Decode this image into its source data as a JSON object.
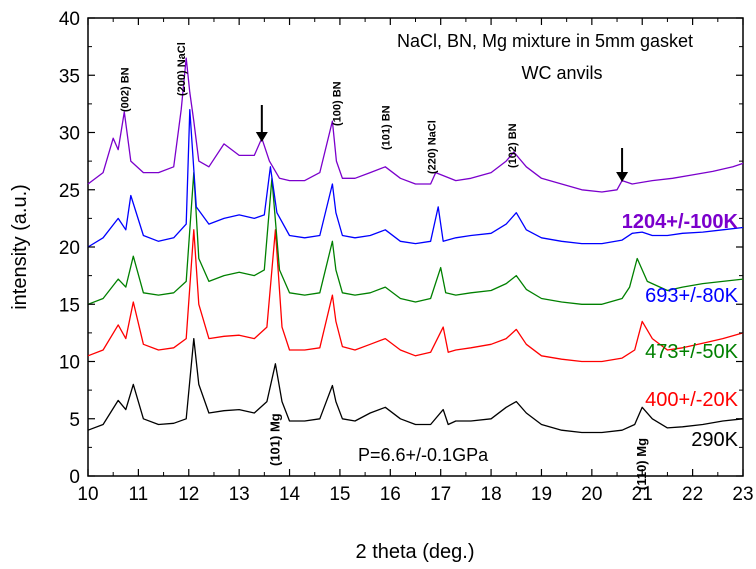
{
  "chart_data": {
    "type": "line",
    "title": [
      "NaCl, BN, Mg mixture in 5mm gasket",
      "WC anvils"
    ],
    "xlabel": "2 theta (deg.)",
    "ylabel": "intensity (a.u.)",
    "xlim": [
      10,
      23
    ],
    "ylim": [
      0,
      40
    ],
    "xticks": [
      "10",
      "11",
      "12",
      "13",
      "14",
      "15",
      "16",
      "17",
      "18",
      "19",
      "20",
      "21",
      "22",
      "23"
    ],
    "yticks": [
      "0",
      "5",
      "10",
      "15",
      "20",
      "25",
      "30",
      "35",
      "40"
    ],
    "grid": false,
    "annotation": "P=6.6+/-0.1GPa",
    "peak_labels": [
      {
        "text": "(002) BN",
        "x": 10.72
      },
      {
        "text": "(200) NaCl",
        "x": 11.85
      },
      {
        "text": "(100) BN",
        "x": 14.93
      },
      {
        "text": "(101) BN",
        "x": 15.9
      },
      {
        "text": "(220) NaCl",
        "x": 16.82
      },
      {
        "text": "(102) BN",
        "x": 18.42
      },
      {
        "text": "(101) Mg",
        "x": 13.72
      },
      {
        "text": "(110) Mg",
        "x": 21.0
      }
    ],
    "arrows": [
      13.45,
      20.6
    ],
    "series": [
      {
        "name": "290K",
        "color": "#000000",
        "x": [
          10.0,
          10.3,
          10.6,
          10.75,
          10.9,
          11.1,
          11.4,
          11.7,
          11.95,
          12.1,
          12.2,
          12.4,
          12.7,
          13.0,
          13.3,
          13.55,
          13.72,
          13.85,
          14.0,
          14.3,
          14.6,
          14.85,
          14.92,
          15.05,
          15.3,
          15.6,
          15.9,
          16.2,
          16.5,
          16.8,
          17.05,
          17.15,
          17.3,
          17.6,
          18.0,
          18.3,
          18.5,
          18.7,
          19.0,
          19.4,
          19.8,
          20.2,
          20.6,
          20.85,
          21.0,
          21.2,
          21.5,
          21.8,
          22.2,
          22.6,
          23.0
        ],
        "values": [
          4.0,
          4.5,
          6.6,
          5.8,
          8.0,
          5.0,
          4.5,
          4.6,
          5.0,
          12.0,
          8.0,
          5.5,
          5.7,
          5.8,
          5.5,
          6.5,
          9.8,
          6.5,
          4.8,
          4.8,
          5.0,
          7.9,
          6.5,
          5.0,
          4.8,
          5.5,
          6.0,
          5.0,
          4.5,
          4.5,
          5.8,
          4.5,
          4.8,
          4.8,
          5.0,
          6.0,
          6.5,
          5.5,
          4.5,
          4.0,
          3.8,
          3.8,
          4.0,
          4.5,
          6.0,
          5.0,
          4.2,
          4.3,
          4.5,
          4.8,
          5.0
        ]
      },
      {
        "name": "400+/-20K",
        "color": "#ff0000",
        "x": [
          10.0,
          10.3,
          10.6,
          10.75,
          10.9,
          11.1,
          11.4,
          11.7,
          11.95,
          12.1,
          12.2,
          12.4,
          12.7,
          13.0,
          13.3,
          13.55,
          13.72,
          13.85,
          14.0,
          14.3,
          14.6,
          14.85,
          14.92,
          15.05,
          15.3,
          15.6,
          15.9,
          16.2,
          16.5,
          16.8,
          17.05,
          17.15,
          17.3,
          17.6,
          18.0,
          18.3,
          18.5,
          18.7,
          19.0,
          19.4,
          19.8,
          20.2,
          20.6,
          20.85,
          21.0,
          21.2,
          21.5,
          21.8,
          22.2,
          22.6,
          23.0
        ],
        "values": [
          10.5,
          11.0,
          13.2,
          12.0,
          15.2,
          11.5,
          11.0,
          11.2,
          12.0,
          21.5,
          15.0,
          12.0,
          12.2,
          12.3,
          12.0,
          13.0,
          21.5,
          13.0,
          11.0,
          11.0,
          11.2,
          15.8,
          13.5,
          11.3,
          11.0,
          11.5,
          12.0,
          11.0,
          10.5,
          10.8,
          13.0,
          10.8,
          11.0,
          11.2,
          11.5,
          12.0,
          12.8,
          11.5,
          10.5,
          10.2,
          10.0,
          10.0,
          10.3,
          11.0,
          13.5,
          12.0,
          11.0,
          11.2,
          11.6,
          12.0,
          12.5
        ]
      },
      {
        "name": "473+/-50K",
        "color": "#008000",
        "x": [
          10.0,
          10.3,
          10.6,
          10.75,
          10.9,
          11.1,
          11.4,
          11.7,
          11.95,
          12.1,
          12.2,
          12.4,
          12.7,
          13.0,
          13.3,
          13.5,
          13.65,
          13.8,
          14.0,
          14.3,
          14.6,
          14.85,
          14.92,
          15.05,
          15.3,
          15.6,
          15.9,
          16.2,
          16.5,
          16.8,
          17.0,
          17.1,
          17.3,
          17.6,
          18.0,
          18.3,
          18.5,
          18.7,
          19.0,
          19.4,
          19.8,
          20.2,
          20.6,
          20.75,
          20.9,
          21.1,
          21.5,
          21.8,
          22.2,
          22.6,
          23.0
        ],
        "values": [
          15.0,
          15.5,
          17.2,
          16.5,
          19.2,
          16.0,
          15.8,
          16.0,
          17.0,
          26.5,
          19.0,
          17.0,
          17.5,
          17.8,
          17.5,
          18.0,
          26.0,
          18.0,
          16.0,
          15.8,
          16.0,
          20.5,
          18.0,
          16.0,
          15.8,
          16.0,
          16.5,
          15.5,
          15.2,
          15.5,
          18.2,
          16.0,
          15.8,
          16.0,
          16.2,
          16.8,
          17.5,
          16.3,
          15.5,
          15.2,
          15.0,
          15.0,
          15.5,
          16.5,
          19.0,
          17.0,
          16.2,
          16.5,
          16.8,
          17.0,
          17.2
        ]
      },
      {
        "name": "693+/-80K",
        "color": "#0000ff",
        "x": [
          10.0,
          10.3,
          10.6,
          10.75,
          10.85,
          11.1,
          11.4,
          11.7,
          11.95,
          12.02,
          12.15,
          12.4,
          12.7,
          13.0,
          13.3,
          13.5,
          13.62,
          13.75,
          14.0,
          14.3,
          14.6,
          14.85,
          14.92,
          15.05,
          15.3,
          15.6,
          15.9,
          16.2,
          16.5,
          16.8,
          16.95,
          17.05,
          17.3,
          17.6,
          18.0,
          18.3,
          18.5,
          18.7,
          19.0,
          19.4,
          19.8,
          20.2,
          20.6,
          20.8,
          21.0,
          21.2,
          21.5,
          21.8,
          22.2,
          22.6,
          23.0
        ],
        "values": [
          20.0,
          20.8,
          22.5,
          21.5,
          24.5,
          21.0,
          20.5,
          20.8,
          22.0,
          32.0,
          23.5,
          22.0,
          22.5,
          22.8,
          22.5,
          22.8,
          27.0,
          23.0,
          21.0,
          20.8,
          21.0,
          25.5,
          23.0,
          21.0,
          20.8,
          21.0,
          21.5,
          20.5,
          20.3,
          20.5,
          23.5,
          20.5,
          20.8,
          21.0,
          21.2,
          22.0,
          23.0,
          21.5,
          20.8,
          20.5,
          20.3,
          20.3,
          20.6,
          21.2,
          21.3,
          21.0,
          21.0,
          21.2,
          21.3,
          21.5,
          21.7
        ]
      },
      {
        "name": "1204+/-100K",
        "color": "#7b00cc",
        "x": [
          10.0,
          10.3,
          10.5,
          10.6,
          10.72,
          10.85,
          11.1,
          11.4,
          11.7,
          11.85,
          11.95,
          12.02,
          12.1,
          12.2,
          12.4,
          12.7,
          13.0,
          13.3,
          13.45,
          13.6,
          13.8,
          14.0,
          14.3,
          14.6,
          14.85,
          14.93,
          15.05,
          15.3,
          15.6,
          15.9,
          16.2,
          16.5,
          16.8,
          16.9,
          17.3,
          17.6,
          18.0,
          18.3,
          18.45,
          18.7,
          19.0,
          19.4,
          19.8,
          20.2,
          20.5,
          20.6,
          20.8,
          21.2,
          21.6,
          22.0,
          22.4,
          22.8,
          23.0
        ],
        "values": [
          25.5,
          26.5,
          29.5,
          28.5,
          31.8,
          27.5,
          26.5,
          26.5,
          27.0,
          32.0,
          36.5,
          33.5,
          31.0,
          27.5,
          27.0,
          29.0,
          28.0,
          28.0,
          29.5,
          27.5,
          26.0,
          25.8,
          25.8,
          26.5,
          31.0,
          27.5,
          26.0,
          26.0,
          26.5,
          27.0,
          26.0,
          25.5,
          25.5,
          26.5,
          25.8,
          26.0,
          26.5,
          27.5,
          28.3,
          27.0,
          26.0,
          25.5,
          25.0,
          24.8,
          25.0,
          25.8,
          25.5,
          25.8,
          26.0,
          26.3,
          26.6,
          27.0,
          27.3
        ]
      }
    ]
  }
}
